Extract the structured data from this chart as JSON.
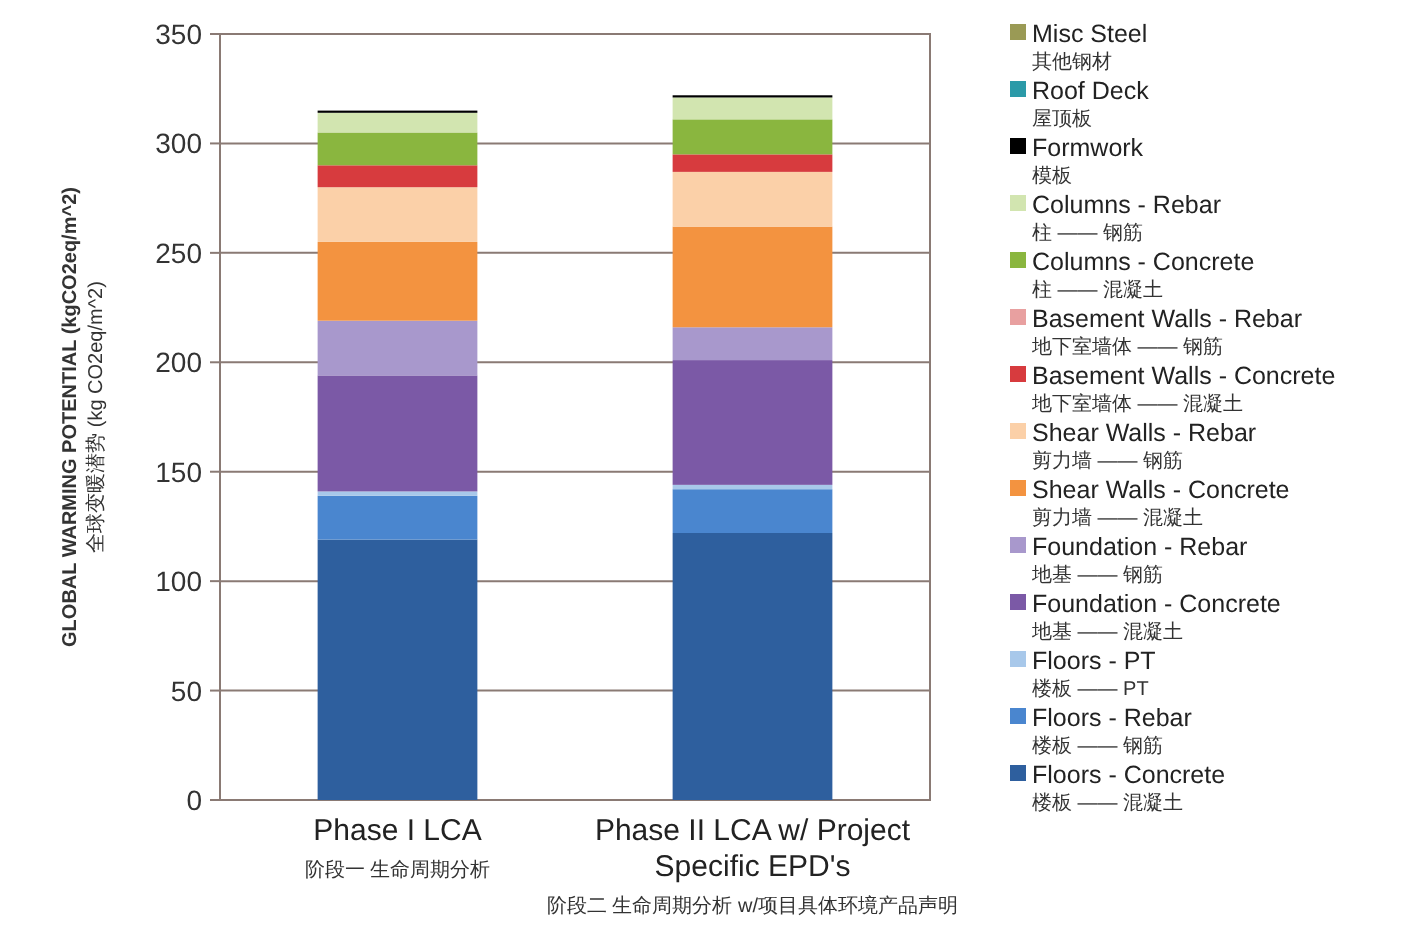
{
  "chart_data": {
    "type": "bar",
    "stacked": true,
    "ylabel": "GLOBAL WARMING POTENTIAL (kgCO2eq/m^2)\n全球变暖潜势 (kg CO2eq/m^2)",
    "categories": [
      "Phase I LCA\n阶段一 生命周期分析",
      "Phase II LCA w/ Project Specific EPD's\n阶段二 生命周期分析 w/项目具体环境产品声明"
    ],
    "series": [
      {
        "name": "Floors - Concrete\n楼板 —— 混凝土",
        "color": "#2e5f9e",
        "values": [
          119,
          122
        ]
      },
      {
        "name": "Floors - Rebar\n楼板 —— 钢筋",
        "color": "#4a86cf",
        "values": [
          20,
          20
        ]
      },
      {
        "name": "Floors - PT\n楼板 —— PT",
        "color": "#a8c8ea",
        "values": [
          2,
          2
        ]
      },
      {
        "name": "Foundation - Concrete\n地基 —— 混凝土",
        "color": "#7b59a6",
        "values": [
          53,
          57
        ]
      },
      {
        "name": "Foundation - Rebar\n地基 —— 钢筋",
        "color": "#a898cc",
        "values": [
          25,
          15
        ]
      },
      {
        "name": "Shear Walls - Concrete\n剪力墙 —— 混凝土",
        "color": "#f39340",
        "values": [
          36,
          46
        ]
      },
      {
        "name": "Shear Walls - Rebar\n剪力墙 —— 钢筋",
        "color": "#fbd0a8",
        "values": [
          25,
          25
        ]
      },
      {
        "name": "Basement Walls - Concrete\n地下室墙体 —— 混凝土",
        "color": "#d73b3e",
        "values": [
          10,
          8
        ]
      },
      {
        "name": "Basement Walls - Rebar\n地下室墙体 —— 钢筋",
        "color": "#e8a0a0",
        "values": [
          0,
          0
        ]
      },
      {
        "name": "Columns - Concrete\n柱 —— 混凝土",
        "color": "#8ab63f",
        "values": [
          15,
          16
        ]
      },
      {
        "name": "Columns - Rebar\n柱 —— 钢筋",
        "color": "#d2e5b0",
        "values": [
          9,
          10
        ]
      },
      {
        "name": "Formwork\n模板",
        "color": "#000000",
        "values": [
          1,
          1
        ]
      },
      {
        "name": "Roof Deck\n屋顶板",
        "color": "#2b9aa8",
        "values": [
          0,
          0
        ]
      },
      {
        "name": "Misc Steel\n其他钢材",
        "color": "#9a9a55",
        "values": [
          0,
          0
        ]
      }
    ],
    "ylim": [
      0,
      350
    ],
    "yticks": [
      0,
      50,
      100,
      150,
      200,
      250,
      300,
      350
    ],
    "grid": "y",
    "legend": "right"
  }
}
